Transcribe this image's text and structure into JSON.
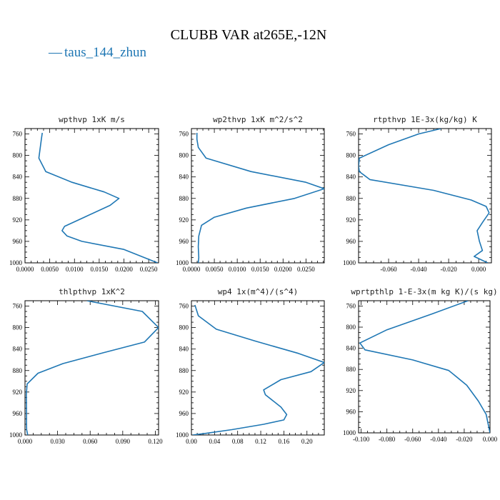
{
  "suptitle": "CLUBB VAR at265E,-12N",
  "legend": {
    "label": "taus_144_zhun",
    "line_glyph": "—",
    "color": "#1f77b4"
  },
  "chart_data": [
    {
      "type": "line",
      "title": "wpthvp  1xK m/s",
      "xlim": [
        0,
        0.027
      ],
      "ylim": [
        1000,
        750
      ],
      "xticks": [
        0,
        0.005,
        0.01,
        0.015,
        0.02,
        0.025
      ],
      "xtick_labels": [
        "0.0000",
        "0.0050",
        "0.0100",
        "0.0150",
        "0.0200",
        "0.0250"
      ],
      "yticks": [
        760,
        800,
        840,
        880,
        920,
        960,
        1000
      ],
      "ytick_labels": [
        "760",
        "800",
        "840",
        "880",
        "920",
        "960",
        "1000"
      ],
      "series": [
        {
          "x": [
            0.0035,
            0.0033,
            0.0028,
            0.0042,
            0.0095,
            0.016,
            0.019,
            0.0172,
            0.012,
            0.008,
            0.0075,
            0.0085,
            0.0115,
            0.02,
            0.0268
          ],
          "y": [
            758,
            770,
            805,
            830,
            850,
            868,
            880,
            893,
            915,
            932,
            940,
            950,
            960,
            975,
            1000
          ]
        }
      ]
    },
    {
      "type": "line",
      "title": "wp2thvp  1xK m^2/s^2",
      "xlim": [
        0,
        0.029
      ],
      "ylim": [
        1000,
        750
      ],
      "xticks": [
        0,
        0.005,
        0.01,
        0.015,
        0.02,
        0.025
      ],
      "xtick_labels": [
        "0.0000",
        "0.0050",
        "0.0100",
        "0.0150",
        "0.0200",
        "0.0250"
      ],
      "yticks": [
        760,
        800,
        840,
        880,
        920,
        960,
        1000
      ],
      "ytick_labels": [
        "760",
        "800",
        "840",
        "880",
        "920",
        "960",
        "1000"
      ],
      "series": [
        {
          "x": [
            0.0012,
            0.0012,
            0.0015,
            0.0032,
            0.013,
            0.025,
            0.029,
            0.0225,
            0.012,
            0.005,
            0.0022,
            0.0016,
            0.0015,
            0.0016,
            0.0015
          ],
          "y": [
            758,
            770,
            785,
            805,
            830,
            850,
            862,
            880,
            898,
            915,
            930,
            950,
            970,
            990,
            1000
          ]
        }
      ]
    },
    {
      "type": "line",
      "title": "rtpthvp  1E-3x(kg/kg) K",
      "xlim": [
        -0.08,
        0.0085
      ],
      "ylim": [
        1000,
        750
      ],
      "xticks": [
        -0.06,
        -0.04,
        -0.02,
        0
      ],
      "xtick_labels": [
        "-0.060",
        "-0.040",
        "-0.020",
        "0.000"
      ],
      "yticks": [
        760,
        800,
        840,
        880,
        920,
        960,
        1000
      ],
      "ytick_labels": [
        "760",
        "800",
        "840",
        "880",
        "920",
        "960",
        "1000"
      ],
      "series": [
        {
          "x": [
            -0.025,
            -0.04,
            -0.06,
            -0.0795,
            -0.08,
            -0.0795,
            -0.0725,
            -0.03,
            -0.005,
            0.005,
            0.007,
            0.003,
            -0.001,
            0.0005,
            0.0025,
            -0.003,
            0.006
          ],
          "y": [
            750,
            760,
            780,
            805,
            820,
            830,
            845,
            865,
            883,
            895,
            907,
            923,
            940,
            960,
            977,
            988,
            1000
          ]
        }
      ]
    },
    {
      "type": "line",
      "title": "thlpthvp  1xK^2",
      "xlim": [
        0,
        0.123
      ],
      "ylim": [
        1000,
        750
      ],
      "xticks": [
        0,
        0.03,
        0.06,
        0.09,
        0.12
      ],
      "xtick_labels": [
        "0.000",
        "0.030",
        "0.060",
        "0.090",
        "0.120"
      ],
      "yticks": [
        760,
        800,
        840,
        880,
        920,
        960,
        1000
      ],
      "ytick_labels": [
        "760",
        "800",
        "840",
        "880",
        "920",
        "960",
        "1000"
      ],
      "series": [
        {
          "x": [
            0.057,
            0.108,
            0.123,
            0.11,
            0.072,
            0.035,
            0.012,
            0.002,
            0.0012,
            0.0013,
            0.0014,
            0.0014,
            0.0015,
            0.0025
          ],
          "y": [
            750,
            770,
            800,
            827,
            847,
            867,
            885,
            905,
            925,
            945,
            965,
            980,
            990,
            1000
          ]
        }
      ]
    },
    {
      "type": "line",
      "title": "wp4  1x(m^4)/(s^4)",
      "xlim": [
        0,
        0.23
      ],
      "ylim": [
        1000,
        750
      ],
      "xticks": [
        0,
        0.04,
        0.08,
        0.12,
        0.16,
        0.2
      ],
      "xtick_labels": [
        "0.00",
        "0.04",
        "0.08",
        "0.12",
        "0.16",
        "0.20"
      ],
      "yticks": [
        760,
        800,
        840,
        880,
        920,
        960,
        1000
      ],
      "ytick_labels": [
        "760",
        "800",
        "840",
        "880",
        "920",
        "960",
        "1000"
      ],
      "series": [
        {
          "x": [
            0.006,
            0.012,
            0.043,
            0.11,
            0.185,
            0.23,
            0.207,
            0.155,
            0.125,
            0.128,
            0.155,
            0.165,
            0.16,
            0.125,
            0.07,
            0.025,
            0.002
          ],
          "y": [
            758,
            778,
            803,
            825,
            848,
            865,
            882,
            897,
            916,
            925,
            948,
            962,
            972,
            980,
            990,
            997,
            1000
          ]
        }
      ]
    },
    {
      "type": "line",
      "title": "wprtpthlp  1-E-3x(m kg K)/(s kg)",
      "xlim": [
        -0.102,
        0.0
      ],
      "ylim": [
        1000,
        750
      ],
      "xticks": [
        -0.1,
        -0.08,
        -0.06,
        -0.04,
        -0.02,
        0
      ],
      "xtick_labels": [
        "-0.100",
        "-0.080",
        "-0.060",
        "-0.040",
        "-0.020",
        "0.000"
      ],
      "yticks": [
        760,
        800,
        840,
        880,
        920,
        960,
        1000
      ],
      "ytick_labels": [
        "760",
        "800",
        "840",
        "880",
        "920",
        "960",
        "1000"
      ],
      "series": [
        {
          "x": [
            -0.017,
            -0.045,
            -0.08,
            -0.101,
            -0.097,
            -0.06,
            -0.032,
            -0.018,
            -0.009,
            -0.003,
            0.0
          ],
          "y": [
            750,
            775,
            805,
            830,
            843,
            862,
            882,
            910,
            940,
            965,
            1000
          ]
        }
      ]
    }
  ]
}
